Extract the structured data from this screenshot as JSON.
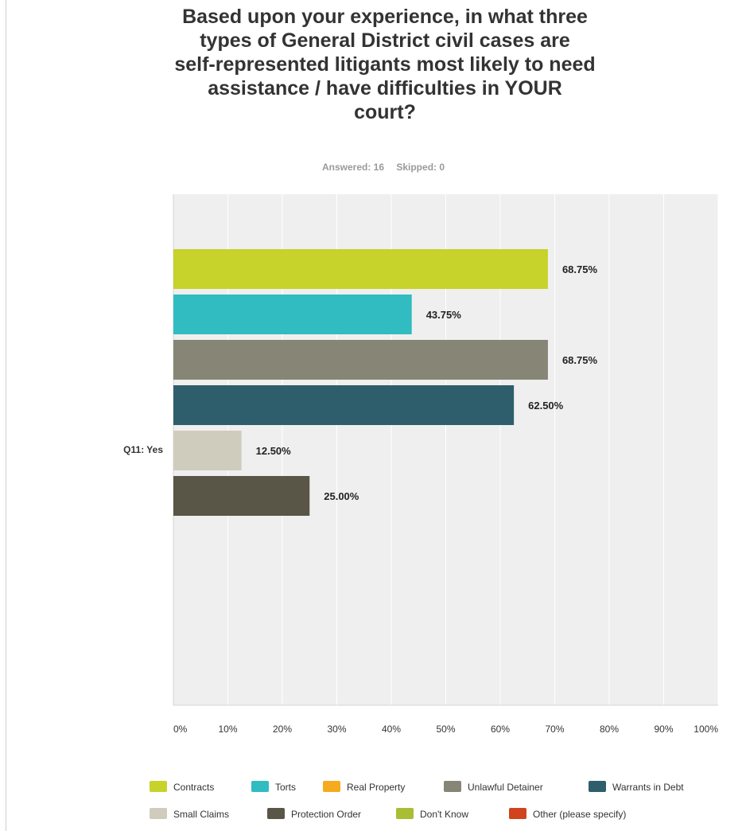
{
  "title_lines": [
    "Based upon your experience, in what three",
    "types of General District civil cases are",
    "self-represented litigants most likely to need",
    "assistance / have difficulties in YOUR",
    "court?"
  ],
  "meta": {
    "answered": "Answered: 16",
    "skipped": "Skipped: 0"
  },
  "chart_data": {
    "type": "bar",
    "orientation": "horizontal",
    "categories": [
      "Q11: Yes"
    ],
    "xlim": [
      0,
      100
    ],
    "x_ticks": [
      "0%",
      "10%",
      "20%",
      "30%",
      "40%",
      "50%",
      "60%",
      "70%",
      "80%",
      "90%",
      "100%"
    ],
    "grid": true,
    "legend_position": "bottom",
    "series": [
      {
        "name": "Contracts",
        "value": 68.75,
        "label": "68.75%",
        "color": "#c7d22b"
      },
      {
        "name": "Torts",
        "value": 43.75,
        "label": "43.75%",
        "color": "#30bcc0"
      },
      {
        "name": "Real Property",
        "value": null,
        "label": "",
        "color": "#f5ab1e"
      },
      {
        "name": "Unlawful Detainer",
        "value": 68.75,
        "label": "68.75%",
        "color": "#878676"
      },
      {
        "name": "Warrants in Debt",
        "value": 62.5,
        "label": "62.50%",
        "color": "#2e5e6b"
      },
      {
        "name": "Small Claims",
        "value": 12.5,
        "label": "12.50%",
        "color": "#cfccbe"
      },
      {
        "name": "Protection Order",
        "value": 25.0,
        "label": "25.00%",
        "color": "#595647"
      },
      {
        "name": "Don't Know",
        "value": null,
        "label": "",
        "color": "#a9bd35"
      },
      {
        "name": "Other (please specify)",
        "value": null,
        "label": "",
        "color": "#d1421e"
      }
    ]
  },
  "legend": {
    "row1": [
      "Contracts",
      "Torts",
      "Real Property",
      "Unlawful Detainer",
      "Warrants in Debt"
    ],
    "row2": [
      "Small Claims",
      "Protection Order",
      "Don't Know",
      "Other (please specify)"
    ]
  }
}
